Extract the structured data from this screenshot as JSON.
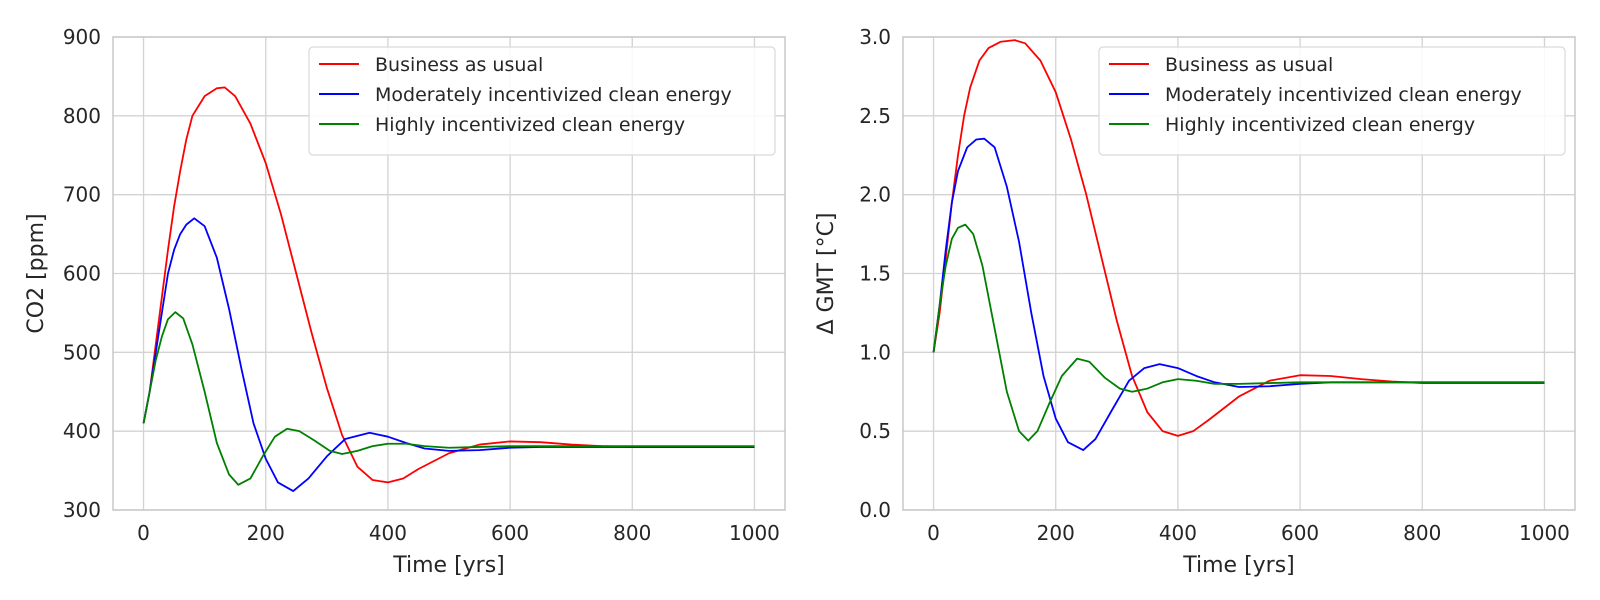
{
  "chart_data": [
    {
      "type": "line",
      "xlabel": "Time [yrs]",
      "ylabel": "CO2 [ppm]",
      "xlim": [
        -50,
        1050
      ],
      "ylim": [
        300,
        900
      ],
      "xticks": [
        0,
        200,
        400,
        600,
        800,
        1000
      ],
      "yticks": [
        300,
        400,
        500,
        600,
        700,
        800,
        900
      ],
      "xtick_labels": [
        "0",
        "200",
        "400",
        "600",
        "800",
        "1000"
      ],
      "ytick_labels": [
        "300",
        "400",
        "500",
        "600",
        "700",
        "800",
        "900"
      ],
      "grid": true,
      "legend_position": "top-right",
      "series": [
        {
          "name": "Business as usual",
          "color": "#ff0000",
          "points": [
            [
              0,
              410
            ],
            [
              10,
              450
            ],
            [
              20,
              510
            ],
            [
              30,
              570
            ],
            [
              40,
              630
            ],
            [
              50,
              685
            ],
            [
              60,
              730
            ],
            [
              70,
              770
            ],
            [
              80,
              800
            ],
            [
              100,
              825
            ],
            [
              120,
              835
            ],
            [
              133,
              836
            ],
            [
              150,
              825
            ],
            [
              175,
              790
            ],
            [
              200,
              740
            ],
            [
              225,
              675
            ],
            [
              250,
              600
            ],
            [
              275,
              525
            ],
            [
              300,
              455
            ],
            [
              325,
              395
            ],
            [
              350,
              355
            ],
            [
              375,
              338
            ],
            [
              400,
              335
            ],
            [
              425,
              340
            ],
            [
              450,
              352
            ],
            [
              500,
              372
            ],
            [
              550,
              383
            ],
            [
              600,
              387
            ],
            [
              650,
              386
            ],
            [
              700,
              383
            ],
            [
              750,
              381
            ],
            [
              800,
              380
            ],
            [
              850,
              380
            ],
            [
              900,
              380
            ],
            [
              950,
              380
            ],
            [
              1000,
              380
            ]
          ]
        },
        {
          "name": "Moderately incentivized clean energy",
          "color": "#0000ff",
          "points": [
            [
              0,
              410
            ],
            [
              10,
              450
            ],
            [
              20,
              500
            ],
            [
              30,
              550
            ],
            [
              40,
              600
            ],
            [
              50,
              630
            ],
            [
              60,
              650
            ],
            [
              70,
              662
            ],
            [
              83,
              670
            ],
            [
              100,
              660
            ],
            [
              120,
              620
            ],
            [
              140,
              555
            ],
            [
              160,
              480
            ],
            [
              180,
              410
            ],
            [
              200,
              365
            ],
            [
              220,
              335
            ],
            [
              245,
              324
            ],
            [
              270,
              340
            ],
            [
              300,
              368
            ],
            [
              330,
              390
            ],
            [
              370,
              398
            ],
            [
              400,
              393
            ],
            [
              430,
              385
            ],
            [
              460,
              378
            ],
            [
              500,
              375
            ],
            [
              550,
              376
            ],
            [
              600,
              379
            ],
            [
              650,
              380
            ],
            [
              700,
              380
            ],
            [
              800,
              380
            ],
            [
              900,
              380
            ],
            [
              1000,
              380
            ]
          ]
        },
        {
          "name": "Highly incentivized clean energy",
          "color": "#008000",
          "points": [
            [
              0,
              410
            ],
            [
              10,
              450
            ],
            [
              20,
              490
            ],
            [
              30,
              520
            ],
            [
              40,
              542
            ],
            [
              52,
              551
            ],
            [
              65,
              543
            ],
            [
              80,
              510
            ],
            [
              100,
              450
            ],
            [
              120,
              385
            ],
            [
              140,
              345
            ],
            [
              155,
              332
            ],
            [
              175,
              340
            ],
            [
              195,
              368
            ],
            [
              215,
              393
            ],
            [
              235,
              403
            ],
            [
              255,
              400
            ],
            [
              280,
              388
            ],
            [
              305,
              375
            ],
            [
              325,
              371
            ],
            [
              350,
              375
            ],
            [
              375,
              381
            ],
            [
              400,
              384
            ],
            [
              430,
              384
            ],
            [
              460,
              381
            ],
            [
              500,
              379
            ],
            [
              550,
              380
            ],
            [
              600,
              381
            ],
            [
              700,
              381
            ],
            [
              800,
              381
            ],
            [
              900,
              381
            ],
            [
              1000,
              381
            ]
          ]
        }
      ]
    },
    {
      "type": "line",
      "xlabel": "Time [yrs]",
      "ylabel": "Δ GMT [°C]",
      "xlim": [
        -50,
        1050
      ],
      "ylim": [
        0,
        3
      ],
      "xticks": [
        0,
        200,
        400,
        600,
        800,
        1000
      ],
      "yticks": [
        0,
        0.5,
        1,
        1.5,
        2,
        2.5,
        3
      ],
      "xtick_labels": [
        "0",
        "200",
        "400",
        "600",
        "800",
        "1000"
      ],
      "ytick_labels": [
        "0.0",
        "0.5",
        "1.0",
        "1.5",
        "2.0",
        "2.5",
        "3.0"
      ],
      "grid": true,
      "legend_position": "top-right",
      "series": [
        {
          "name": "Business as usual",
          "color": "#ff0000",
          "points": [
            [
              0,
              1.0
            ],
            [
              10,
              1.25
            ],
            [
              20,
              1.6
            ],
            [
              30,
              1.95
            ],
            [
              40,
              2.25
            ],
            [
              50,
              2.5
            ],
            [
              60,
              2.68
            ],
            [
              75,
              2.85
            ],
            [
              90,
              2.93
            ],
            [
              110,
              2.97
            ],
            [
              133,
              2.98
            ],
            [
              150,
              2.96
            ],
            [
              175,
              2.85
            ],
            [
              200,
              2.65
            ],
            [
              225,
              2.35
            ],
            [
              250,
              2.0
            ],
            [
              275,
              1.6
            ],
            [
              300,
              1.2
            ],
            [
              325,
              0.85
            ],
            [
              350,
              0.62
            ],
            [
              375,
              0.5
            ],
            [
              400,
              0.47
            ],
            [
              425,
              0.5
            ],
            [
              450,
              0.57
            ],
            [
              500,
              0.72
            ],
            [
              550,
              0.82
            ],
            [
              600,
              0.855
            ],
            [
              650,
              0.85
            ],
            [
              700,
              0.83
            ],
            [
              750,
              0.815
            ],
            [
              800,
              0.805
            ],
            [
              900,
              0.805
            ],
            [
              1000,
              0.805
            ]
          ]
        },
        {
          "name": "Moderately incentivized clean energy",
          "color": "#0000ff",
          "points": [
            [
              0,
              1.0
            ],
            [
              10,
              1.3
            ],
            [
              20,
              1.65
            ],
            [
              30,
              1.95
            ],
            [
              40,
              2.15
            ],
            [
              55,
              2.3
            ],
            [
              70,
              2.35
            ],
            [
              83,
              2.355
            ],
            [
              100,
              2.3
            ],
            [
              120,
              2.05
            ],
            [
              140,
              1.7
            ],
            [
              160,
              1.25
            ],
            [
              180,
              0.85
            ],
            [
              200,
              0.58
            ],
            [
              220,
              0.43
            ],
            [
              245,
              0.38
            ],
            [
              265,
              0.45
            ],
            [
              290,
              0.62
            ],
            [
              320,
              0.82
            ],
            [
              345,
              0.9
            ],
            [
              370,
              0.925
            ],
            [
              400,
              0.9
            ],
            [
              430,
              0.85
            ],
            [
              460,
              0.81
            ],
            [
              500,
              0.78
            ],
            [
              550,
              0.785
            ],
            [
              600,
              0.8
            ],
            [
              650,
              0.81
            ],
            [
              700,
              0.81
            ],
            [
              800,
              0.81
            ],
            [
              900,
              0.81
            ],
            [
              1000,
              0.81
            ]
          ]
        },
        {
          "name": "Highly incentivized clean energy",
          "color": "#008000",
          "points": [
            [
              0,
              1.0
            ],
            [
              10,
              1.3
            ],
            [
              20,
              1.55
            ],
            [
              30,
              1.72
            ],
            [
              40,
              1.79
            ],
            [
              52,
              1.81
            ],
            [
              65,
              1.75
            ],
            [
              80,
              1.55
            ],
            [
              100,
              1.15
            ],
            [
              120,
              0.75
            ],
            [
              140,
              0.5
            ],
            [
              155,
              0.44
            ],
            [
              170,
              0.5
            ],
            [
              190,
              0.68
            ],
            [
              210,
              0.85
            ],
            [
              235,
              0.96
            ],
            [
              255,
              0.94
            ],
            [
              280,
              0.84
            ],
            [
              305,
              0.77
            ],
            [
              325,
              0.75
            ],
            [
              350,
              0.77
            ],
            [
              375,
              0.81
            ],
            [
              400,
              0.83
            ],
            [
              430,
              0.82
            ],
            [
              460,
              0.8
            ],
            [
              500,
              0.8
            ],
            [
              550,
              0.805
            ],
            [
              600,
              0.81
            ],
            [
              700,
              0.81
            ],
            [
              800,
              0.81
            ],
            [
              900,
              0.81
            ],
            [
              1000,
              0.81
            ]
          ]
        }
      ]
    }
  ]
}
